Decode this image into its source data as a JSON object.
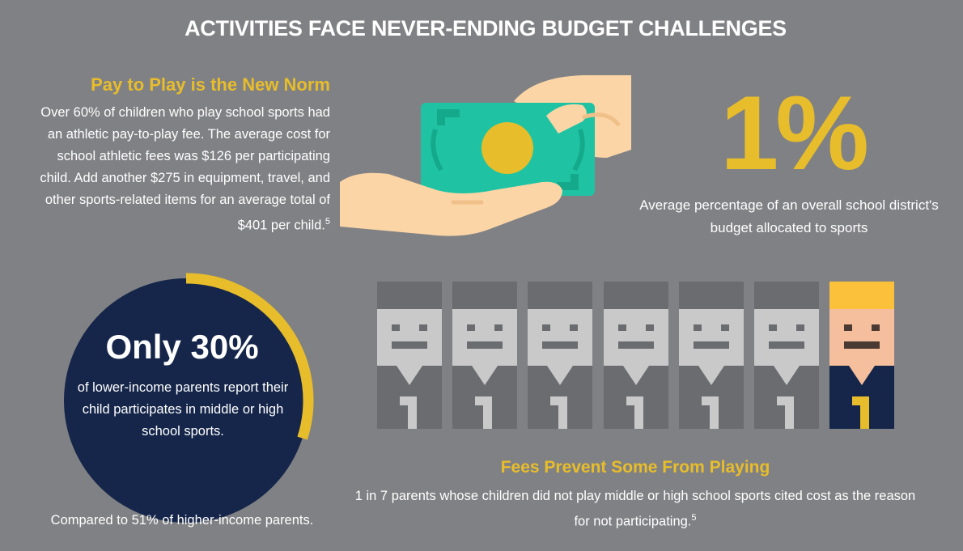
{
  "title": "ACTIVITIES FACE NEVER-ENDING BUDGET CHALLENGES",
  "pay_to_play": {
    "heading": "Pay to Play is the New Norm",
    "body": "Over 60% of children who play school sports had an athletic pay-to-play fee. The average cost for school athletic fees was $126 per participating child. Add another $275 in equipment, travel, and other sports-related items for an average total of $401 per child.",
    "footnote": "5"
  },
  "budget_stat": {
    "value": "1%",
    "caption": "Average percentage of an overall school district's budget allocated to sports"
  },
  "income_stat": {
    "value": "Only 30%",
    "caption": "of lower-income parents report their child participates in middle or high school sports.",
    "ring_fraction": 0.3,
    "comparison": "Compared to 51% of higher-income parents."
  },
  "fees": {
    "heading": "Fees Prevent Some From Playing",
    "body": "1 in 7 parents whose children did not play middle or high school sports cited cost as the reason for not participating.",
    "footnote": "5",
    "people_total": 7,
    "people_highlighted": 1
  },
  "colors": {
    "background": "#808184",
    "accent": "#e8bd2b",
    "navy": "#15264a",
    "money": "#1fc3a3",
    "skin": "#fbd5a6"
  },
  "icons": [
    "hand-giving-money-icon",
    "person-icon"
  ]
}
